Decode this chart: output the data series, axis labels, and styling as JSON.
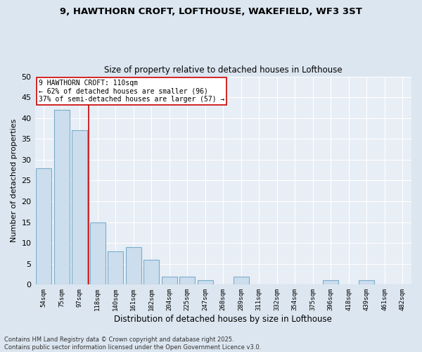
{
  "title_line1": "9, HAWTHORN CROFT, LOFTHOUSE, WAKEFIELD, WF3 3ST",
  "title_line2": "Size of property relative to detached houses in Lofthouse",
  "xlabel": "Distribution of detached houses by size in Lofthouse",
  "ylabel": "Number of detached properties",
  "categories": [
    "54sqm",
    "75sqm",
    "97sqm",
    "118sqm",
    "140sqm",
    "161sqm",
    "182sqm",
    "204sqm",
    "225sqm",
    "247sqm",
    "268sqm",
    "289sqm",
    "311sqm",
    "332sqm",
    "354sqm",
    "375sqm",
    "396sqm",
    "418sqm",
    "439sqm",
    "461sqm",
    "482sqm"
  ],
  "values": [
    28,
    42,
    37,
    15,
    8,
    9,
    6,
    2,
    2,
    1,
    0,
    2,
    0,
    0,
    0,
    0,
    1,
    0,
    1,
    0,
    0
  ],
  "bar_color": "#ccdded",
  "bar_edge_color": "#7aadcc",
  "vline_x": 2.5,
  "vline_color": "#cc0000",
  "annotation_text": "9 HAWTHORN CROFT: 110sqm\n← 62% of detached houses are smaller (96)\n37% of semi-detached houses are larger (57) →",
  "annotation_box_color": "#ffffff",
  "annotation_box_edge_color": "#cc0000",
  "ylim": [
    0,
    50
  ],
  "yticks": [
    0,
    5,
    10,
    15,
    20,
    25,
    30,
    35,
    40,
    45,
    50
  ],
  "bg_color": "#dce6f0",
  "plot_bg_color": "#e8eef5",
  "grid_color": "#ffffff",
  "footer_line1": "Contains HM Land Registry data © Crown copyright and database right 2025.",
  "footer_line2": "Contains public sector information licensed under the Open Government Licence v3.0."
}
